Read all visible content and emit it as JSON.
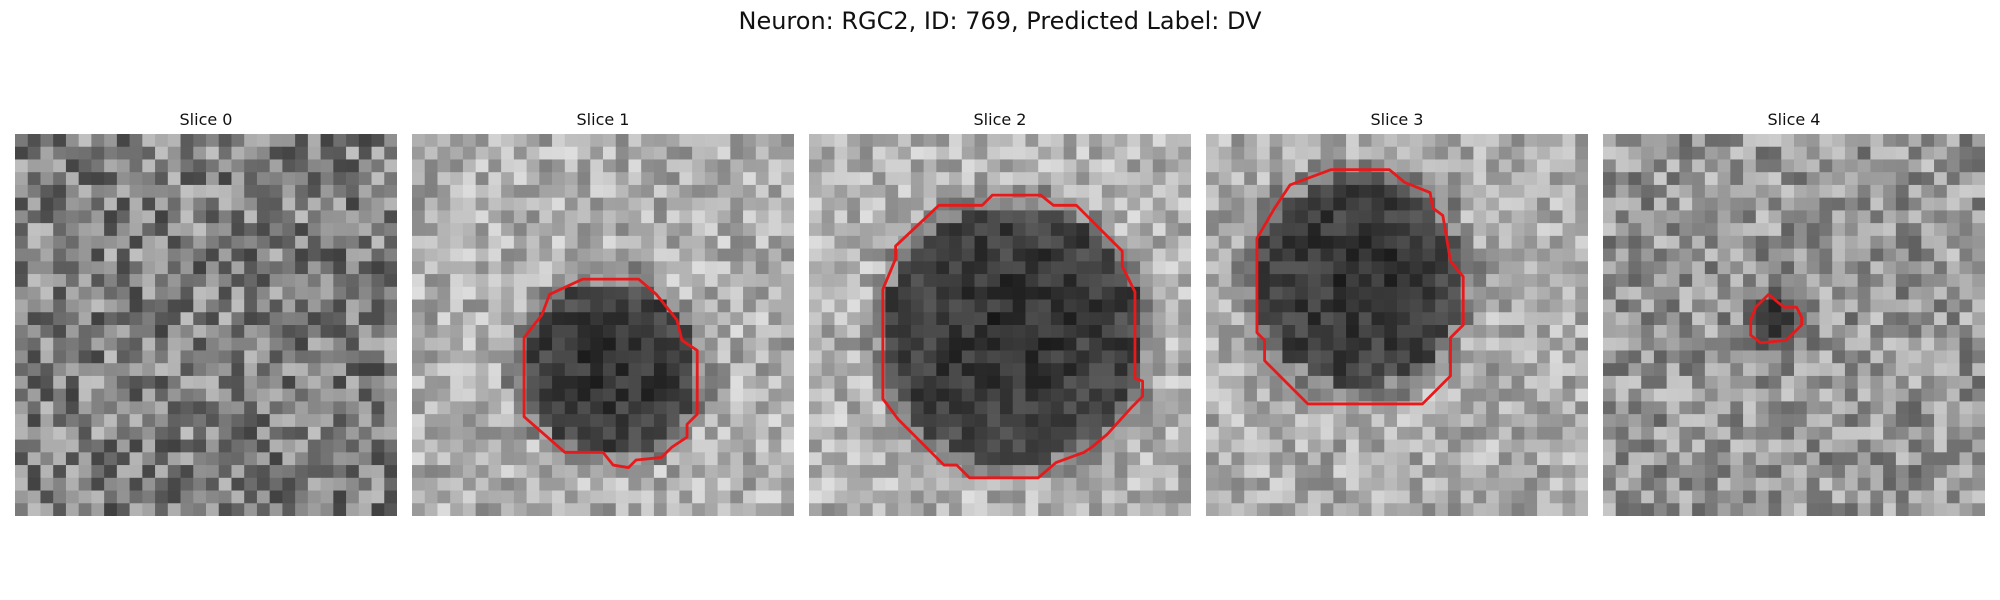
{
  "figure": {
    "title": "Neuron: RGC2, ID: 769, Predicted Label: DV"
  },
  "slices": [
    {
      "label": "Slice 0"
    },
    {
      "label": "Slice 1"
    },
    {
      "label": "Slice 2"
    },
    {
      "label": "Slice 3"
    },
    {
      "label": "Slice 4"
    }
  ],
  "colors": {
    "contour": "#e8191a",
    "background": "#ffffff"
  }
}
